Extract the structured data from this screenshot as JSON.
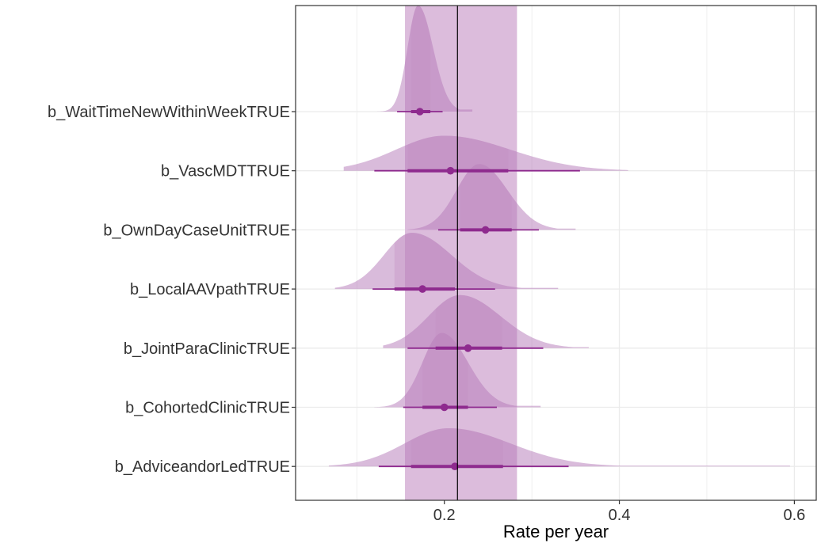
{
  "chart_data": {
    "type": "halfeye",
    "title": "",
    "xlabel": "Rate per year",
    "ylabel": "",
    "xlim": [
      0.03,
      0.625
    ],
    "x_ticks": [
      0.2,
      0.4,
      0.6
    ],
    "x_tick_labels": [
      "0.2",
      "0.4",
      "0.6"
    ],
    "grid": true,
    "legend": "none",
    "reference_line": 0.215,
    "reference_band": [
      0.155,
      0.283
    ],
    "colors": {
      "band": "#dcbcdc",
      "density": "#b477b8",
      "density_inner": "#c290c4",
      "point": "#8e2a8e",
      "line": "#000000",
      "grid": "#ebebeb",
      "panel_border": "#333333"
    },
    "series": [
      {
        "label": "b_WaitTimeNewWithinWeekTRUE",
        "median": 0.172,
        "q66": [
          0.162,
          0.184
        ],
        "q95": [
          0.146,
          0.198
        ],
        "min": 0.12,
        "max": 0.232,
        "mode": 0.17,
        "spread_left": 0.012,
        "spread_right": 0.017,
        "height": 1.0
      },
      {
        "label": "b_VascMDTTRUE",
        "median": 0.207,
        "q66": [
          0.158,
          0.273
        ],
        "q95": [
          0.12,
          0.355
        ],
        "min": 0.085,
        "max": 0.41,
        "mode": 0.2,
        "spread_left": 0.055,
        "spread_right": 0.075,
        "height": 0.33
      },
      {
        "label": "b_OwnDayCaseUnitTRUE",
        "median": 0.247,
        "q66": [
          0.218,
          0.277
        ],
        "q95": [
          0.193,
          0.308
        ],
        "min": 0.158,
        "max": 0.35,
        "mode": 0.24,
        "spread_left": 0.026,
        "spread_right": 0.032,
        "height": 0.62
      },
      {
        "label": "b_LocalAAVpathTRUE",
        "median": 0.175,
        "q66": [
          0.143,
          0.212
        ],
        "q95": [
          0.118,
          0.258
        ],
        "min": 0.075,
        "max": 0.33,
        "mode": 0.163,
        "spread_left": 0.032,
        "spread_right": 0.045,
        "height": 0.53
      },
      {
        "label": "b_JointParaClinicTRUE",
        "median": 0.227,
        "q66": [
          0.19,
          0.266
        ],
        "q95": [
          0.158,
          0.313
        ],
        "min": 0.13,
        "max": 0.365,
        "mode": 0.218,
        "spread_left": 0.036,
        "spread_right": 0.046,
        "height": 0.5
      },
      {
        "label": "b_CohortedClinicTRUE",
        "median": 0.2,
        "q66": [
          0.175,
          0.227
        ],
        "q95": [
          0.153,
          0.26
        ],
        "min": 0.12,
        "max": 0.31,
        "mode": 0.197,
        "spread_left": 0.022,
        "spread_right": 0.03,
        "height": 0.7
      },
      {
        "label": "b_AdviceandorLedTRUE",
        "median": 0.212,
        "q66": [
          0.162,
          0.267
        ],
        "q95": [
          0.125,
          0.342
        ],
        "min": 0.068,
        "max": 0.595,
        "mode": 0.205,
        "spread_left": 0.05,
        "spread_right": 0.07,
        "height": 0.36
      }
    ]
  }
}
